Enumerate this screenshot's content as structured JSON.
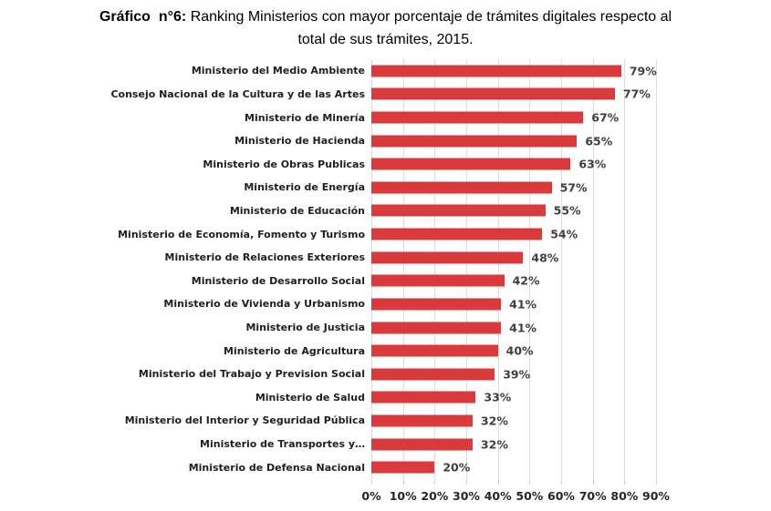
{
  "title": {
    "prefix": "Gráfico  n°6:",
    "line1_rest": " Ranking Ministerios con mayor porcentaje de trámites digitales respecto al",
    "line2": "total de sus trámites, 2015."
  },
  "chart_data": {
    "type": "bar",
    "orientation": "horizontal",
    "title": "Gráfico n°6: Ranking Ministerios con mayor porcentaje de trámites digitales respecto al total de sus trámites, 2015.",
    "categories": [
      "Ministerio del Medio Ambiente",
      "Consejo Nacional de la Cultura y de las Artes",
      "Ministerio de Minería",
      "Ministerio de Hacienda",
      "Ministerio de Obras Publicas",
      "Ministerio de Energía",
      "Ministerio de Educación",
      "Ministerio de Economía, Fomento y Turismo",
      "Ministerio de Relaciones Exteriores",
      "Ministerio de Desarrollo Social",
      "Ministerio de Vivienda y Urbanismo",
      "Ministerio de Justicia",
      "Ministerio de Agricultura",
      "Ministerio del Trabajo y Prevision Social",
      "Ministerio de Salud",
      "Ministerio del Interior y Seguridad Pública",
      "Ministerio de Transportes y…",
      "Ministerio de Defensa Nacional"
    ],
    "values": [
      79,
      77,
      67,
      65,
      63,
      57,
      55,
      54,
      48,
      42,
      41,
      41,
      40,
      39,
      33,
      32,
      32,
      20
    ],
    "value_labels": [
      "79%",
      "77%",
      "67%",
      "65%",
      "63%",
      "57%",
      "55%",
      "54%",
      "48%",
      "42%",
      "41%",
      "41%",
      "40%",
      "39%",
      "33%",
      "32%",
      "32%",
      "20%"
    ],
    "x_ticks": [
      "0%",
      "10%",
      "20%",
      "30%",
      "40%",
      "50%",
      "60%",
      "70%",
      "80%",
      "90%"
    ],
    "xlim": [
      0,
      90
    ],
    "xlabel": "",
    "ylabel": "",
    "grid": "vertical",
    "legend": "none",
    "colors": {
      "bar": "#D93A3C",
      "category_label": "#1F1F1F",
      "value_label": "#3F3F3F",
      "axis_label": "#262626",
      "gridline": "#DEDEDE",
      "tick": "#CFCFCF"
    }
  }
}
